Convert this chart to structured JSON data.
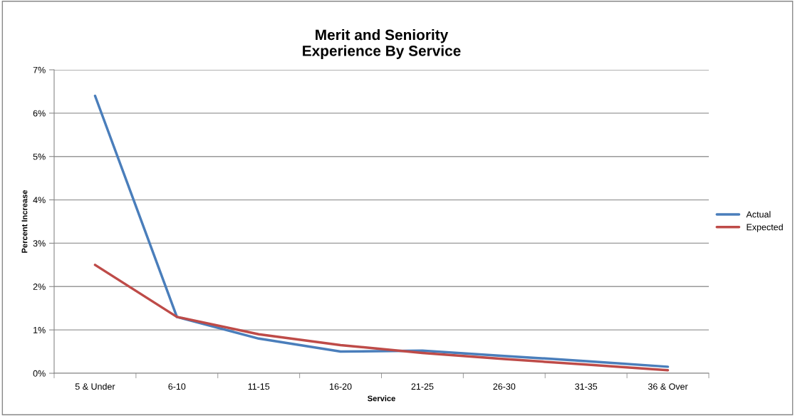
{
  "chart_data": {
    "type": "line",
    "title": "Merit and Seniority\nExperience By Service",
    "xlabel": "Service",
    "ylabel": "Percent Increase",
    "categories": [
      "5 & Under",
      "6-10",
      "11-15",
      "16-20",
      "21-25",
      "26-30",
      "31-35",
      "36 & Over"
    ],
    "series": [
      {
        "name": "Actual",
        "color": "#4a7ebb",
        "values": [
          6.4,
          1.3,
          0.8,
          0.5,
          0.52,
          0.4,
          0.28,
          0.15
        ]
      },
      {
        "name": "Expected",
        "color": "#be4b48",
        "values": [
          2.5,
          1.3,
          0.9,
          0.65,
          0.47,
          0.33,
          0.2,
          0.07
        ]
      }
    ],
    "ylim": [
      0,
      7
    ],
    "yticks": [
      {
        "value": 0,
        "label": "0%"
      },
      {
        "value": 1,
        "label": "1%"
      },
      {
        "value": 2,
        "label": "2%"
      },
      {
        "value": 3,
        "label": "3%"
      },
      {
        "value": 4,
        "label": "4%"
      },
      {
        "value": 5,
        "label": "5%"
      },
      {
        "value": 6,
        "label": "6%"
      },
      {
        "value": 7,
        "label": "7%"
      }
    ],
    "grid": "y",
    "legend": "right",
    "marker": "none",
    "line_style": "solid"
  }
}
